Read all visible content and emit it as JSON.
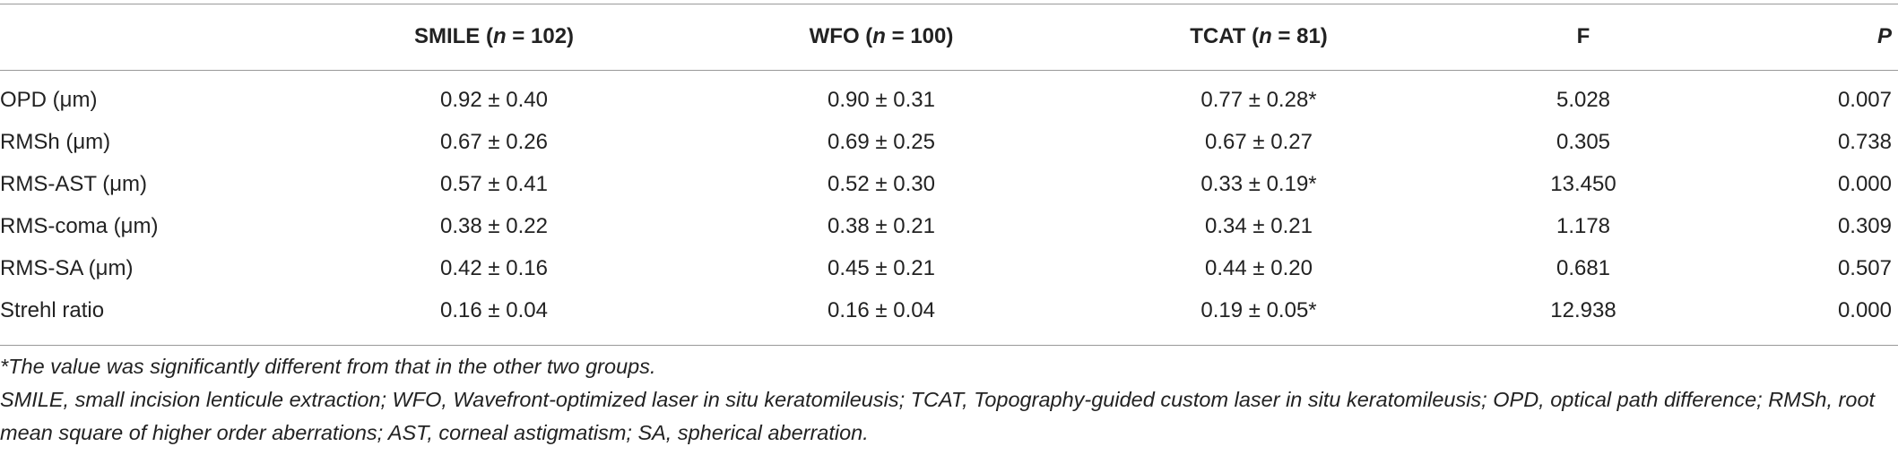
{
  "table": {
    "columns": [
      [
        ""
      ],
      [
        "SMILE (",
        "n",
        " = 102)"
      ],
      [
        "WFO (",
        "n",
        " = 100)"
      ],
      [
        "TCAT (",
        "n",
        " = 81)"
      ],
      [
        "F"
      ],
      [
        "",
        "P",
        ""
      ]
    ],
    "rows": [
      [
        "OPD (μm)",
        "0.92 ± 0.40",
        "0.90 ± 0.31",
        "0.77 ± 0.28*",
        "5.028",
        "0.007"
      ],
      [
        "RMSh (μm)",
        "0.67 ± 0.26",
        "0.69 ± 0.25",
        "0.67 ± 0.27",
        "0.305",
        "0.738"
      ],
      [
        "RMS-AST (μm)",
        "0.57 ± 0.41",
        "0.52 ± 0.30",
        "0.33 ± 0.19*",
        "13.450",
        "0.000"
      ],
      [
        "RMS-coma (μm)",
        "0.38 ± 0.22",
        "0.38 ± 0.21",
        "0.34 ± 0.21",
        "1.178",
        "0.309"
      ],
      [
        "RMS-SA (μm)",
        "0.42 ± 0.16",
        "0.45 ± 0.21",
        "0.44 ± 0.20",
        "0.681",
        "0.507"
      ],
      [
        "Strehl ratio",
        "0.16 ± 0.04",
        "0.16 ± 0.04",
        "0.19 ± 0.05*",
        "12.938",
        "0.000"
      ]
    ],
    "footnotes": [
      "*The value was significantly different from that in the other two groups.",
      "SMILE, small incision lenticule extraction; WFO, Wavefront-optimized laser in situ keratomileusis; TCAT, Topography-guided custom laser in situ keratomileusis; OPD, optical path difference; RMSh, root mean square of higher order aberrations; AST, corneal astigmatism; SA, spherical aberration."
    ]
  }
}
